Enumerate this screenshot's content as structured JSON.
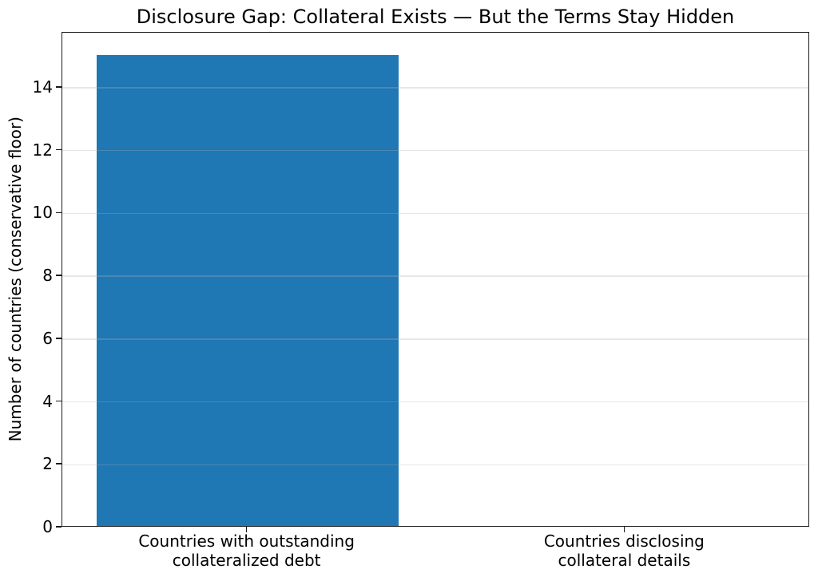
{
  "figure": {
    "background": "#ffffff"
  },
  "chart_data": {
    "type": "bar",
    "title": "Disclosure Gap: Collateral Exists — But the Terms Stay Hidden",
    "xlabel": "",
    "ylabel": "Number of countries (conservative floor)",
    "categories": [
      "Countries with outstanding\ncollateralized debt",
      "Countries disclosing\ncollateral details"
    ],
    "x_positions": [
      0,
      1
    ],
    "values": [
      15,
      0
    ],
    "bar_color": "#1f77b4",
    "bar_width": 0.8,
    "ylim": [
      0,
      15.75
    ],
    "xlim": [
      -0.49,
      1.49
    ],
    "yticks": [
      0,
      2,
      4,
      6,
      8,
      10,
      12,
      14
    ],
    "grid": "horizontal gridlines at y ticks",
    "grid_color": "#b0b0b0",
    "grid_alpha": 0.3,
    "axes_color": "#1b1b1b",
    "legend_position": "none"
  }
}
